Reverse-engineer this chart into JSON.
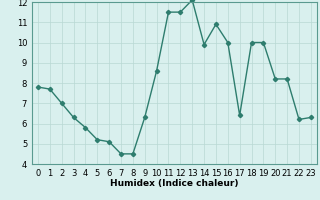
{
  "x": [
    0,
    1,
    2,
    3,
    4,
    5,
    6,
    7,
    8,
    9,
    10,
    11,
    12,
    13,
    14,
    15,
    16,
    17,
    18,
    19,
    20,
    21,
    22,
    23
  ],
  "y": [
    7.8,
    7.7,
    7.0,
    6.3,
    5.8,
    5.2,
    5.1,
    4.5,
    4.5,
    6.3,
    8.6,
    11.5,
    11.5,
    12.1,
    9.9,
    10.9,
    10.0,
    6.4,
    10.0,
    10.0,
    8.2,
    8.2,
    6.2,
    6.3
  ],
  "line_color": "#2e7d6e",
  "marker": "D",
  "marker_size": 2.2,
  "line_width": 1.0,
  "bg_color": "#d9f0ee",
  "grid_color": "#b8d8d4",
  "xlabel": "Humidex (Indice chaleur)",
  "xlim": [
    -0.5,
    23.5
  ],
  "ylim": [
    4,
    12
  ],
  "yticks": [
    4,
    5,
    6,
    7,
    8,
    9,
    10,
    11,
    12
  ],
  "xtick_labels": [
    "0",
    "1",
    "2",
    "3",
    "4",
    "5",
    "6",
    "7",
    "8",
    "9",
    "10",
    "11",
    "12",
    "13",
    "14",
    "15",
    "16",
    "17",
    "18",
    "19",
    "20",
    "21",
    "22",
    "23"
  ],
  "xlabel_fontsize": 6.5,
  "tick_fontsize": 6.0
}
